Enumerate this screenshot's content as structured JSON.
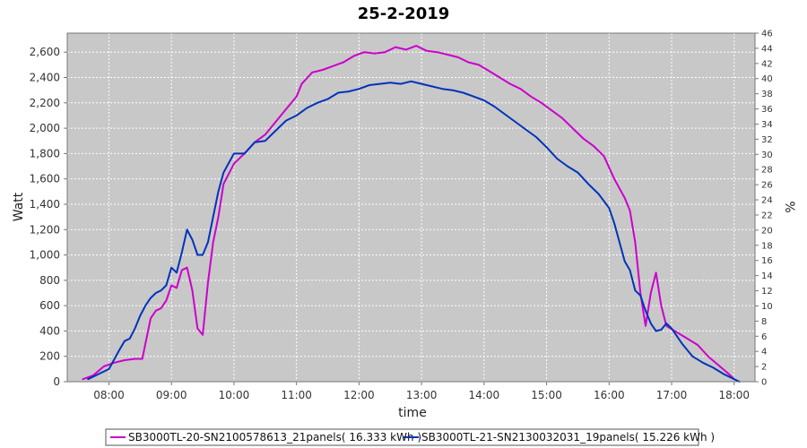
{
  "chart_data": {
    "type": "line",
    "title": "25-2-2019",
    "xlabel": "time",
    "ylabel": "Watt",
    "y2label": "%",
    "xlim": [
      "07:20",
      "18:20"
    ],
    "x_ticks": [
      "08:00",
      "09:00",
      "10:00",
      "11:00",
      "12:00",
      "13:00",
      "14:00",
      "15:00",
      "16:00",
      "17:00",
      "18:00"
    ],
    "ylim": [
      0,
      2750
    ],
    "y_ticks": [
      "0",
      "200",
      "400",
      "600",
      "800",
      "1,000",
      "1,200",
      "1,400",
      "1,600",
      "1,800",
      "2,000",
      "2,200",
      "2,400",
      "2,600"
    ],
    "y2lim": [
      0,
      46
    ],
    "y2_ticks": [
      "0",
      "2",
      "4",
      "6",
      "8",
      "10",
      "12",
      "14",
      "16",
      "18",
      "20",
      "22",
      "24",
      "26",
      "28",
      "30",
      "32",
      "34",
      "36",
      "38",
      "40",
      "42",
      "44",
      "46"
    ],
    "grid": true,
    "legend_position": "bottom",
    "colors": {
      "plot_bg": "#c8c8c8",
      "grid": "#ffffff"
    },
    "series": [
      {
        "name": "SB3000TL-20-SN2100578613_21panels( 16.333 kWh )",
        "color": "#cc00cc",
        "x": [
          "07:35",
          "07:45",
          "07:55",
          "08:05",
          "08:15",
          "08:25",
          "08:32",
          "08:40",
          "08:45",
          "08:50",
          "08:55",
          "09:00",
          "09:05",
          "09:10",
          "09:15",
          "09:20",
          "09:25",
          "09:30",
          "09:35",
          "09:40",
          "09:45",
          "09:50",
          "10:00",
          "10:10",
          "10:20",
          "10:30",
          "10:40",
          "10:50",
          "11:00",
          "11:05",
          "11:15",
          "11:25",
          "11:35",
          "11:45",
          "11:55",
          "12:05",
          "12:15",
          "12:25",
          "12:35",
          "12:45",
          "12:55",
          "13:05",
          "13:15",
          "13:25",
          "13:35",
          "13:45",
          "13:55",
          "14:05",
          "14:15",
          "14:25",
          "14:35",
          "14:45",
          "14:55",
          "15:05",
          "15:15",
          "15:25",
          "15:35",
          "15:45",
          "15:55",
          "16:05",
          "16:15",
          "16:20",
          "16:25",
          "16:30",
          "16:35",
          "16:40",
          "16:45",
          "16:50",
          "16:55",
          "17:05",
          "17:15",
          "17:25",
          "17:35",
          "17:45",
          "17:55",
          "18:00"
        ],
        "y": [
          20,
          50,
          120,
          150,
          170,
          180,
          180,
          500,
          560,
          580,
          640,
          760,
          740,
          880,
          900,
          720,
          420,
          370,
          780,
          1100,
          1300,
          1560,
          1720,
          1800,
          1890,
          1950,
          2050,
          2150,
          2250,
          2350,
          2440,
          2460,
          2490,
          2520,
          2570,
          2600,
          2590,
          2600,
          2640,
          2620,
          2650,
          2610,
          2600,
          2580,
          2560,
          2520,
          2500,
          2450,
          2400,
          2350,
          2310,
          2250,
          2200,
          2140,
          2080,
          2000,
          1920,
          1860,
          1780,
          1600,
          1450,
          1350,
          1100,
          700,
          440,
          700,
          860,
          600,
          440,
          390,
          340,
          290,
          200,
          130,
          60,
          20
        ]
      },
      {
        "name": "SB3000TL-21-SN2130032031_19panels( 15.226 kWh )",
        "color": "#0033bb",
        "x": [
          "07:40",
          "07:50",
          "08:00",
          "08:10",
          "08:15",
          "08:20",
          "08:25",
          "08:30",
          "08:35",
          "08:40",
          "08:45",
          "08:50",
          "08:55",
          "09:00",
          "09:05",
          "09:10",
          "09:15",
          "09:20",
          "09:25",
          "09:30",
          "09:35",
          "09:40",
          "09:45",
          "09:50",
          "10:00",
          "10:10",
          "10:20",
          "10:30",
          "10:40",
          "10:50",
          "11:00",
          "11:10",
          "11:20",
          "11:30",
          "11:40",
          "11:50",
          "12:00",
          "12:10",
          "12:20",
          "12:30",
          "12:40",
          "12:50",
          "13:00",
          "13:10",
          "13:20",
          "13:30",
          "13:40",
          "13:50",
          "14:00",
          "14:10",
          "14:20",
          "14:30",
          "14:40",
          "14:50",
          "15:00",
          "15:10",
          "15:20",
          "15:30",
          "15:40",
          "15:50",
          "16:00",
          "16:05",
          "16:10",
          "16:15",
          "16:20",
          "16:25",
          "16:30",
          "16:35",
          "16:40",
          "16:45",
          "16:50",
          "16:55",
          "17:00",
          "17:10",
          "17:20",
          "17:30",
          "17:40",
          "17:50",
          "18:00",
          "18:05"
        ],
        "y": [
          20,
          60,
          100,
          250,
          320,
          340,
          420,
          520,
          600,
          660,
          700,
          720,
          760,
          900,
          860,
          1020,
          1200,
          1120,
          1000,
          1000,
          1100,
          1300,
          1500,
          1650,
          1800,
          1800,
          1890,
          1900,
          1980,
          2060,
          2100,
          2160,
          2200,
          2230,
          2280,
          2290,
          2310,
          2340,
          2350,
          2360,
          2350,
          2370,
          2350,
          2330,
          2310,
          2300,
          2280,
          2250,
          2220,
          2170,
          2110,
          2050,
          1990,
          1930,
          1850,
          1760,
          1700,
          1650,
          1560,
          1480,
          1370,
          1250,
          1100,
          950,
          880,
          720,
          680,
          560,
          460,
          400,
          410,
          460,
          420,
          300,
          200,
          150,
          110,
          60,
          20,
          0
        ]
      }
    ]
  }
}
